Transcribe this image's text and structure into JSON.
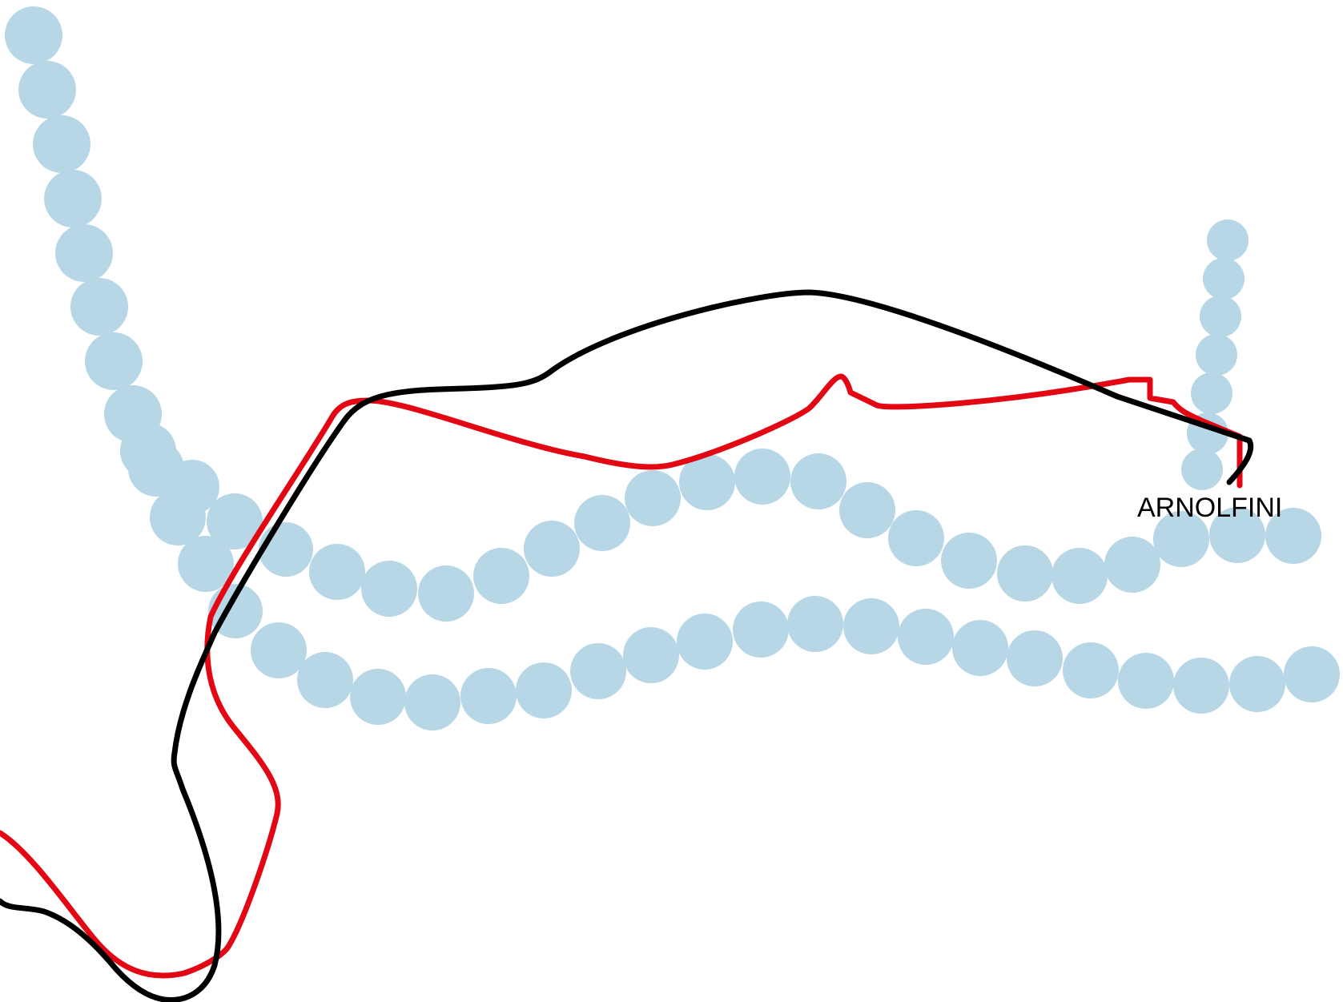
{
  "map": {
    "place_label": "ARNOLFINI",
    "colors": {
      "background": "#ffffff",
      "water_dots": "#b7d6e6",
      "route_red": "#e30613",
      "route_black": "#000000",
      "label": "#000000"
    }
  }
}
